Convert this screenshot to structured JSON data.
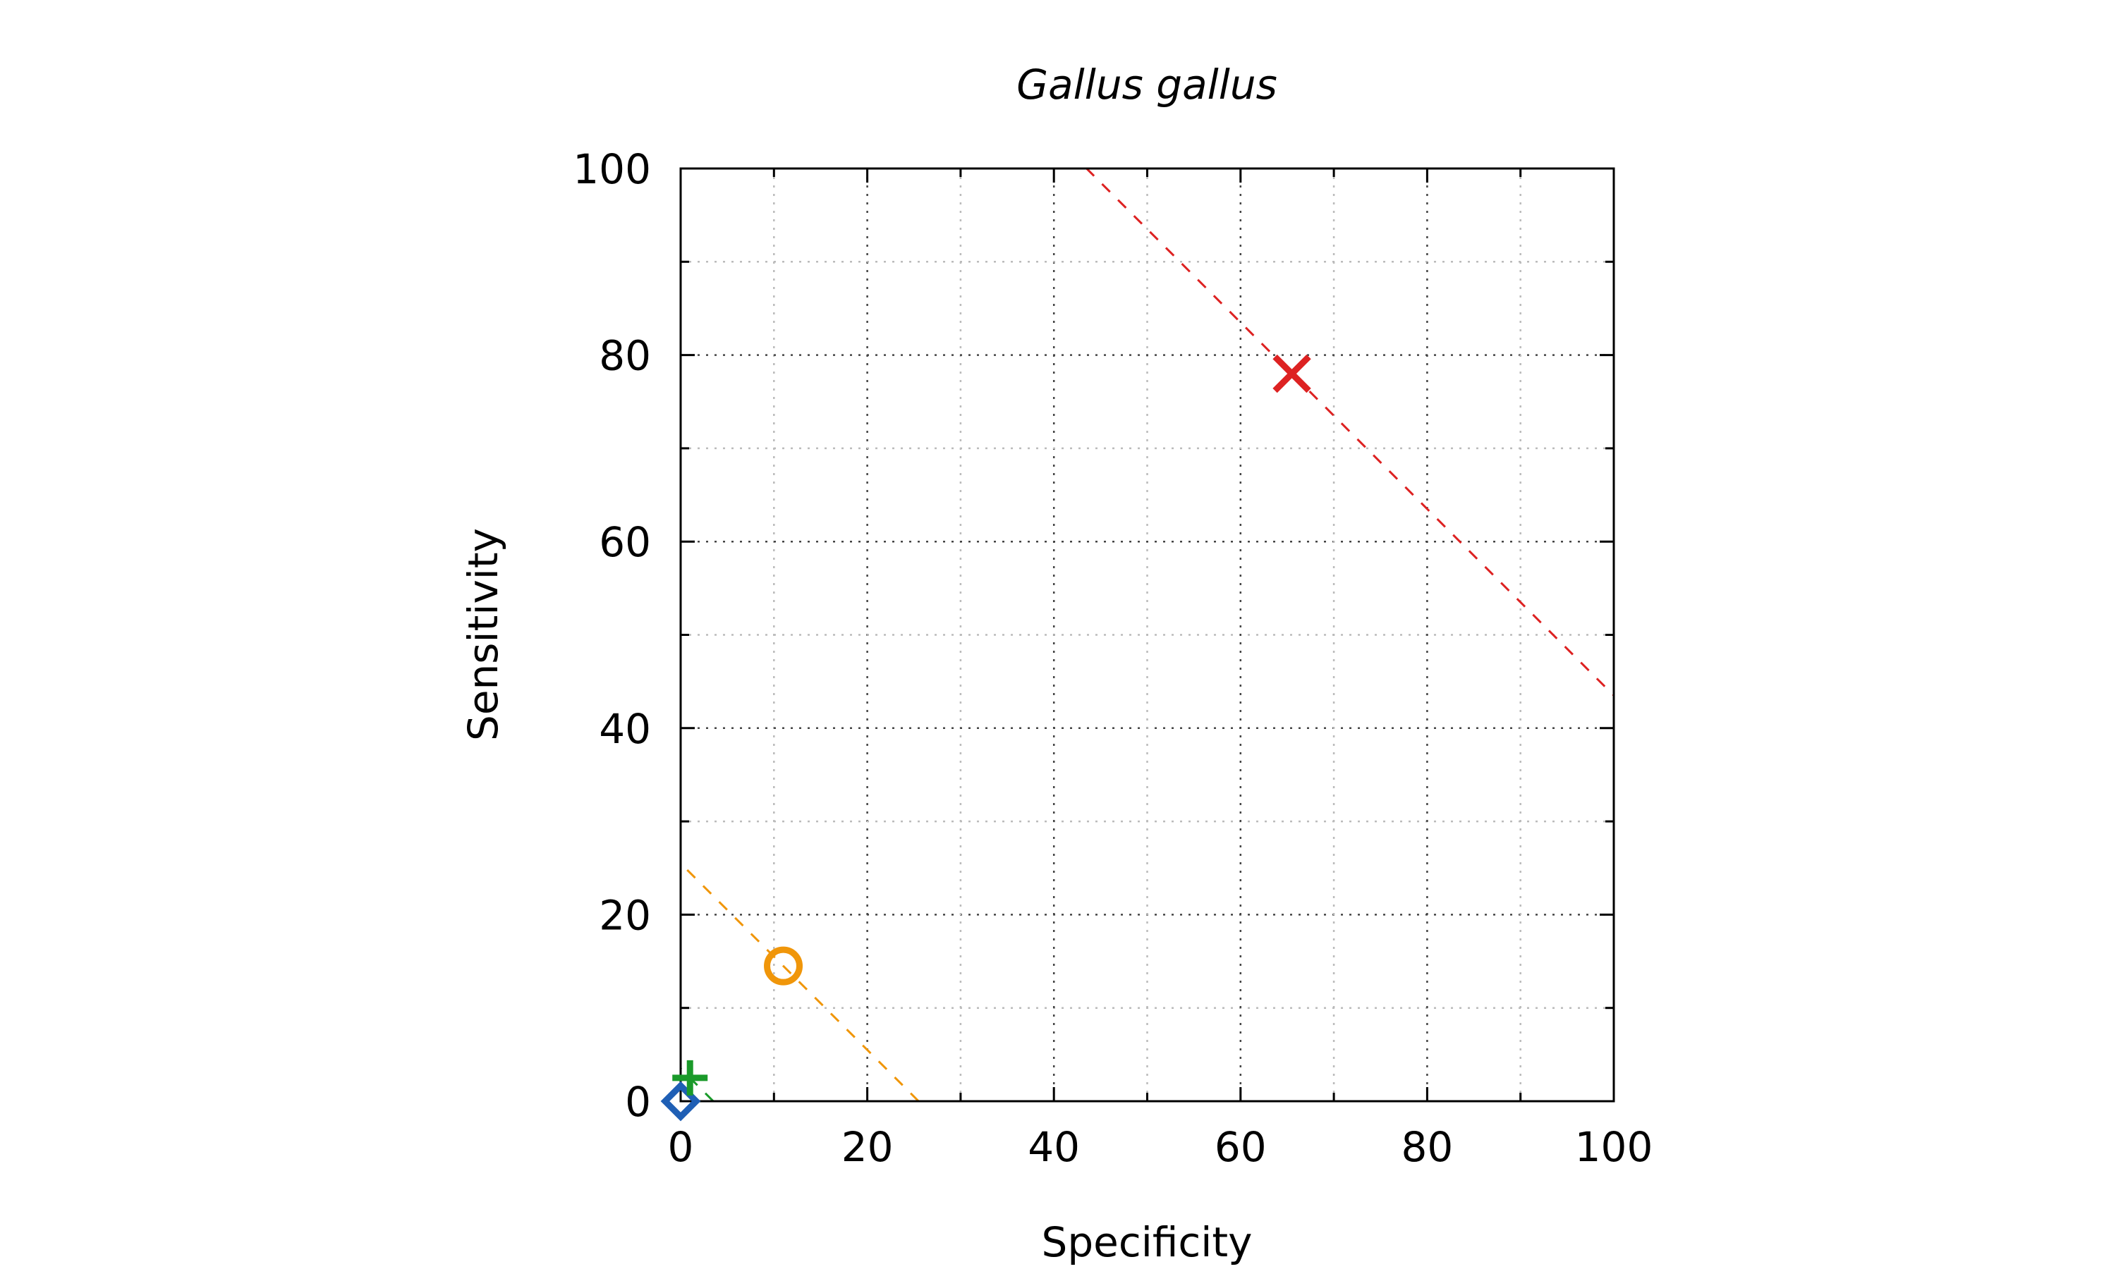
{
  "chart_data": {
    "type": "scatter",
    "title": "Gallus gallus",
    "xlabel": "Specificity",
    "ylabel": "Sensitivity",
    "xlim": [
      0,
      100
    ],
    "ylim": [
      0,
      100
    ],
    "xticks": [
      "0",
      "20",
      "40",
      "60",
      "80",
      "100"
    ],
    "yticks": [
      "0",
      "20",
      "40",
      "60",
      "80",
      "100"
    ],
    "grid": true,
    "points": [
      {
        "x": 0,
        "y": 0,
        "marker": "diamond",
        "color": "#1f5fb5"
      },
      {
        "x": 1,
        "y": 2.5,
        "marker": "plus",
        "color": "#1a9a2a"
      },
      {
        "x": 11,
        "y": 14.5,
        "marker": "circle",
        "color": "#f0960a"
      },
      {
        "x": 65.5,
        "y": 78,
        "marker": "cross",
        "color": "#dd2222"
      }
    ],
    "reference_lines": [
      {
        "color": "#1a9a2a",
        "x_intercept": 3.5,
        "y_intercept": 3.5
      },
      {
        "color": "#f0960a",
        "x_intercept": 25.5,
        "y_intercept": 25.5
      },
      {
        "color": "#dd2222",
        "x_intercept": 143.5,
        "y_intercept": 143.5
      }
    ]
  }
}
